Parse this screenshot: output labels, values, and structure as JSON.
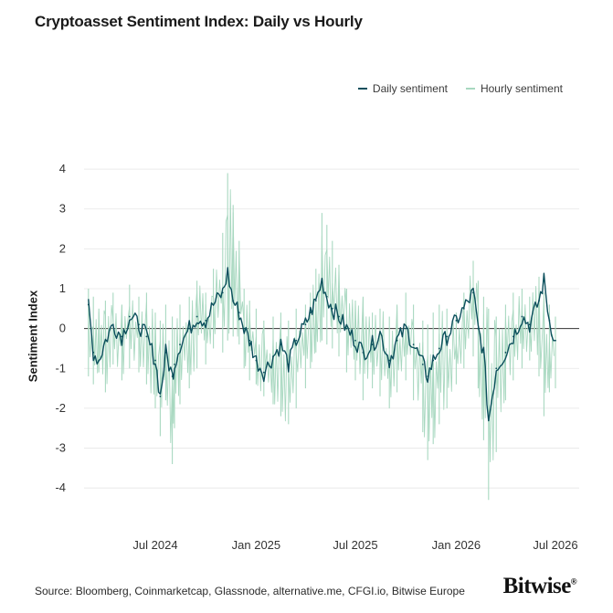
{
  "chart_data": {
    "type": "line",
    "title": "Cryptoasset Sentiment Index: Daily vs Hourly",
    "ylabel": "Sentiment Index",
    "xlabel": "",
    "ylim": [
      -4.5,
      4.3
    ],
    "yticks": [
      -4,
      -3,
      -2,
      -1,
      0,
      1,
      2,
      3,
      4
    ],
    "xticks": [
      "Jul 2024",
      "Jan 2025",
      "Jul 2025",
      "Jan 2026",
      "Jul 2026"
    ],
    "x_range": [
      "2024-03-01",
      "2026-07-01"
    ],
    "grid": "horizontal",
    "legend_position": "top-right",
    "series": [
      {
        "name": "Hourly sentiment",
        "color": "#a8d8c0",
        "x": [
          "2024-03-01",
          "2024-03-10",
          "2024-03-20",
          "2024-04-01",
          "2024-04-15",
          "2024-05-01",
          "2024-05-15",
          "2024-06-01",
          "2024-06-15",
          "2024-07-01",
          "2024-07-10",
          "2024-07-20",
          "2024-08-01",
          "2024-08-05",
          "2024-08-15",
          "2024-09-01",
          "2024-09-15",
          "2024-10-01",
          "2024-10-15",
          "2024-11-01",
          "2024-11-10",
          "2024-11-20",
          "2024-12-01",
          "2024-12-10",
          "2024-12-20",
          "2025-01-01",
          "2025-01-15",
          "2025-02-01",
          "2025-02-15",
          "2025-03-01",
          "2025-03-15",
          "2025-04-01",
          "2025-04-10",
          "2025-04-20",
          "2025-05-01",
          "2025-05-10",
          "2025-05-20",
          "2025-06-01",
          "2025-06-15",
          "2025-07-01",
          "2025-07-15",
          "2025-08-01",
          "2025-08-15",
          "2025-09-01",
          "2025-09-15",
          "2025-10-01",
          "2025-10-15",
          "2025-11-01",
          "2025-11-10",
          "2025-11-20",
          "2025-12-01",
          "2025-12-15",
          "2026-01-01",
          "2026-01-15",
          "2026-02-01",
          "2026-02-10",
          "2026-02-20",
          "2026-03-01",
          "2026-03-15",
          "2026-04-01",
          "2026-04-15",
          "2026-05-01",
          "2026-05-15",
          "2026-06-01",
          "2026-06-10",
          "2026-06-20",
          "2026-07-01"
        ],
        "high": [
          1.0,
          0.8,
          0.5,
          0.7,
          0.9,
          0.6,
          1.1,
          0.8,
          0.9,
          0.4,
          0.2,
          0.6,
          0.3,
          0.0,
          0.6,
          0.8,
          1.2,
          0.9,
          1.5,
          2.4,
          3.9,
          3.1,
          2.2,
          1.0,
          0.7,
          0.5,
          0.2,
          0.3,
          0.4,
          0.2,
          0.5,
          0.6,
          0.9,
          1.5,
          2.9,
          2.6,
          2.2,
          1.6,
          1.0,
          0.7,
          0.8,
          0.4,
          0.5,
          0.3,
          0.6,
          0.9,
          0.6,
          0.2,
          0.1,
          0.4,
          0.6,
          0.5,
          0.4,
          0.9,
          1.7,
          1.2,
          0.8,
          0.5,
          0.3,
          0.6,
          0.9,
          1.0,
          0.8,
          1.3,
          0.9,
          0.6,
          0.3
        ],
        "low": [
          -1.2,
          -1.4,
          -1.1,
          -1.6,
          -0.9,
          -1.3,
          -1.0,
          -1.1,
          -1.4,
          -2.0,
          -2.7,
          -1.8,
          -3.4,
          -2.5,
          -1.9,
          -1.5,
          -1.0,
          -0.9,
          -0.5,
          -0.6,
          -0.3,
          -0.2,
          -0.4,
          -1.0,
          -1.3,
          -1.4,
          -1.7,
          -1.9,
          -2.2,
          -2.4,
          -2.0,
          -1.5,
          -1.0,
          -0.6,
          -0.3,
          -0.4,
          -0.5,
          -0.7,
          -1.1,
          -1.3,
          -1.8,
          -1.5,
          -1.7,
          -2.0,
          -1.6,
          -1.3,
          -1.8,
          -2.6,
          -3.3,
          -2.9,
          -2.4,
          -2.0,
          -1.4,
          -1.0,
          -0.7,
          -1.5,
          -2.8,
          -4.3,
          -3.1,
          -1.8,
          -1.3,
          -1.0,
          -0.8,
          -1.2,
          -2.2,
          -1.6,
          -1.5
        ]
      },
      {
        "name": "Daily sentiment",
        "color": "#0b4f5c",
        "x": [
          "2024-03-01",
          "2024-03-10",
          "2024-03-20",
          "2024-04-01",
          "2024-04-15",
          "2024-05-01",
          "2024-05-15",
          "2024-06-01",
          "2024-06-15",
          "2024-07-01",
          "2024-07-10",
          "2024-07-20",
          "2024-08-01",
          "2024-08-05",
          "2024-08-15",
          "2024-09-01",
          "2024-09-15",
          "2024-10-01",
          "2024-10-15",
          "2024-11-01",
          "2024-11-10",
          "2024-11-20",
          "2024-12-01",
          "2024-12-10",
          "2024-12-20",
          "2025-01-01",
          "2025-01-15",
          "2025-02-01",
          "2025-02-15",
          "2025-03-01",
          "2025-03-15",
          "2025-04-01",
          "2025-04-10",
          "2025-04-20",
          "2025-05-01",
          "2025-05-10",
          "2025-05-20",
          "2025-06-01",
          "2025-06-15",
          "2025-07-01",
          "2025-07-15",
          "2025-08-01",
          "2025-08-15",
          "2025-09-01",
          "2025-09-15",
          "2025-10-01",
          "2025-10-15",
          "2025-11-01",
          "2025-11-10",
          "2025-11-20",
          "2025-12-01",
          "2025-12-15",
          "2026-01-01",
          "2026-01-15",
          "2026-02-01",
          "2026-02-10",
          "2026-02-20",
          "2026-03-01",
          "2026-03-15",
          "2026-04-01",
          "2026-04-15",
          "2026-05-01",
          "2026-05-15",
          "2026-06-01",
          "2026-06-10",
          "2026-06-20",
          "2026-07-01"
        ],
        "values": [
          0.6,
          -0.6,
          -0.8,
          -0.3,
          0.1,
          -0.2,
          0.3,
          0.1,
          -0.2,
          -0.8,
          -1.7,
          -0.6,
          -1.2,
          -0.9,
          -0.4,
          0.0,
          0.3,
          0.2,
          0.6,
          0.9,
          1.4,
          0.7,
          0.4,
          0.0,
          -0.3,
          -0.8,
          -1.1,
          -0.7,
          -0.4,
          -0.9,
          -0.3,
          0.1,
          0.4,
          0.7,
          1.2,
          0.8,
          0.5,
          0.3,
          0.0,
          -0.3,
          -0.6,
          -0.4,
          -0.1,
          -0.8,
          -0.3,
          0.0,
          -0.4,
          -0.9,
          -1.2,
          -0.8,
          -0.5,
          -0.2,
          0.2,
          0.5,
          0.9,
          0.0,
          -0.6,
          -2.3,
          -1.0,
          -0.6,
          -0.2,
          0.3,
          0.1,
          0.7,
          1.2,
          0.2,
          -0.3
        ]
      }
    ]
  },
  "source_text": "Source: Bloomberg, Coinmarketcap, Glassnode, alternative.me, CFGI.io, Bitwise Europe",
  "brand": "Bitwise",
  "brand_mark": "®"
}
